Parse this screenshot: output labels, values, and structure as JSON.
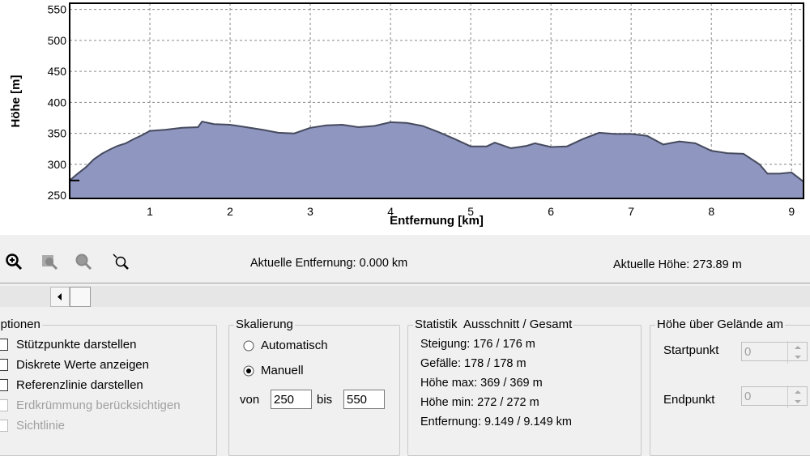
{
  "chart_data": {
    "type": "area",
    "ylabel": "Höhe [m]",
    "xlabel": "Entfernung [km]",
    "x": [
      0,
      0.1,
      0.2,
      0.3,
      0.4,
      0.5,
      0.6,
      0.7,
      0.8,
      0.9,
      1.0,
      1.2,
      1.4,
      1.6,
      1.65,
      1.8,
      2.0,
      2.2,
      2.4,
      2.6,
      2.8,
      3.0,
      3.2,
      3.4,
      3.6,
      3.8,
      4.0,
      4.2,
      4.4,
      4.6,
      4.8,
      5.0,
      5.2,
      5.3,
      5.5,
      5.7,
      5.8,
      6.0,
      6.2,
      6.4,
      6.6,
      6.8,
      7.0,
      7.2,
      7.4,
      7.6,
      7.8,
      8.0,
      8.2,
      8.4,
      8.6,
      8.7,
      8.85,
      9.0,
      9.149
    ],
    "values": [
      274,
      285,
      295,
      308,
      317,
      324,
      330,
      334,
      341,
      347,
      354,
      356,
      359,
      360,
      369,
      365,
      364,
      360,
      356,
      351,
      350,
      359,
      363,
      364,
      360,
      362,
      368,
      367,
      362,
      352,
      341,
      329,
      329,
      335,
      326,
      330,
      334,
      328,
      329,
      341,
      351,
      349,
      349,
      346,
      332,
      337,
      334,
      322,
      318,
      317,
      300,
      285,
      285,
      287,
      272
    ],
    "color": "#8f96c0",
    "line_color": "#454a5e",
    "xlim": [
      0,
      9.149
    ],
    "ylim": [
      245,
      560
    ],
    "xticks": [
      1,
      2,
      3,
      4,
      5,
      6,
      7,
      8,
      9
    ],
    "yticks": [
      250,
      300,
      350,
      400,
      450,
      500,
      550
    ],
    "grid": true
  },
  "status": {
    "distance": "Aktuelle Entfernung: 0.000 km",
    "height": "Aktuelle Höhe: 273.89 m"
  },
  "options": {
    "title": "Optionen",
    "items": [
      "Stützpunkte darstellen",
      "Diskrete Werte anzeigen",
      "Referenzlinie darstellen",
      "Erdkrümmung berücksichtigen",
      "Sichtlinie"
    ]
  },
  "scaling": {
    "title": "Skalierung",
    "auto": "Automatisch",
    "manual": "Manuell",
    "from_label": "von",
    "from": "250",
    "to_label": "bis",
    "to": "550"
  },
  "statistics": {
    "title": "Statistik  Ausschnitt / Gesamt",
    "lines": [
      "Steigung: 176 / 176 m",
      "Gefälle: 178 / 178 m",
      "Höhe max: 369 / 369 m",
      "Höhe min: 272 / 272 m",
      "Entfernung: 9.149 / 9.149 km"
    ]
  },
  "terrain": {
    "title": "Höhe über Gelände am",
    "start_label": "Startpunkt",
    "start": "0",
    "end_label": "Endpunkt",
    "end": "0"
  }
}
